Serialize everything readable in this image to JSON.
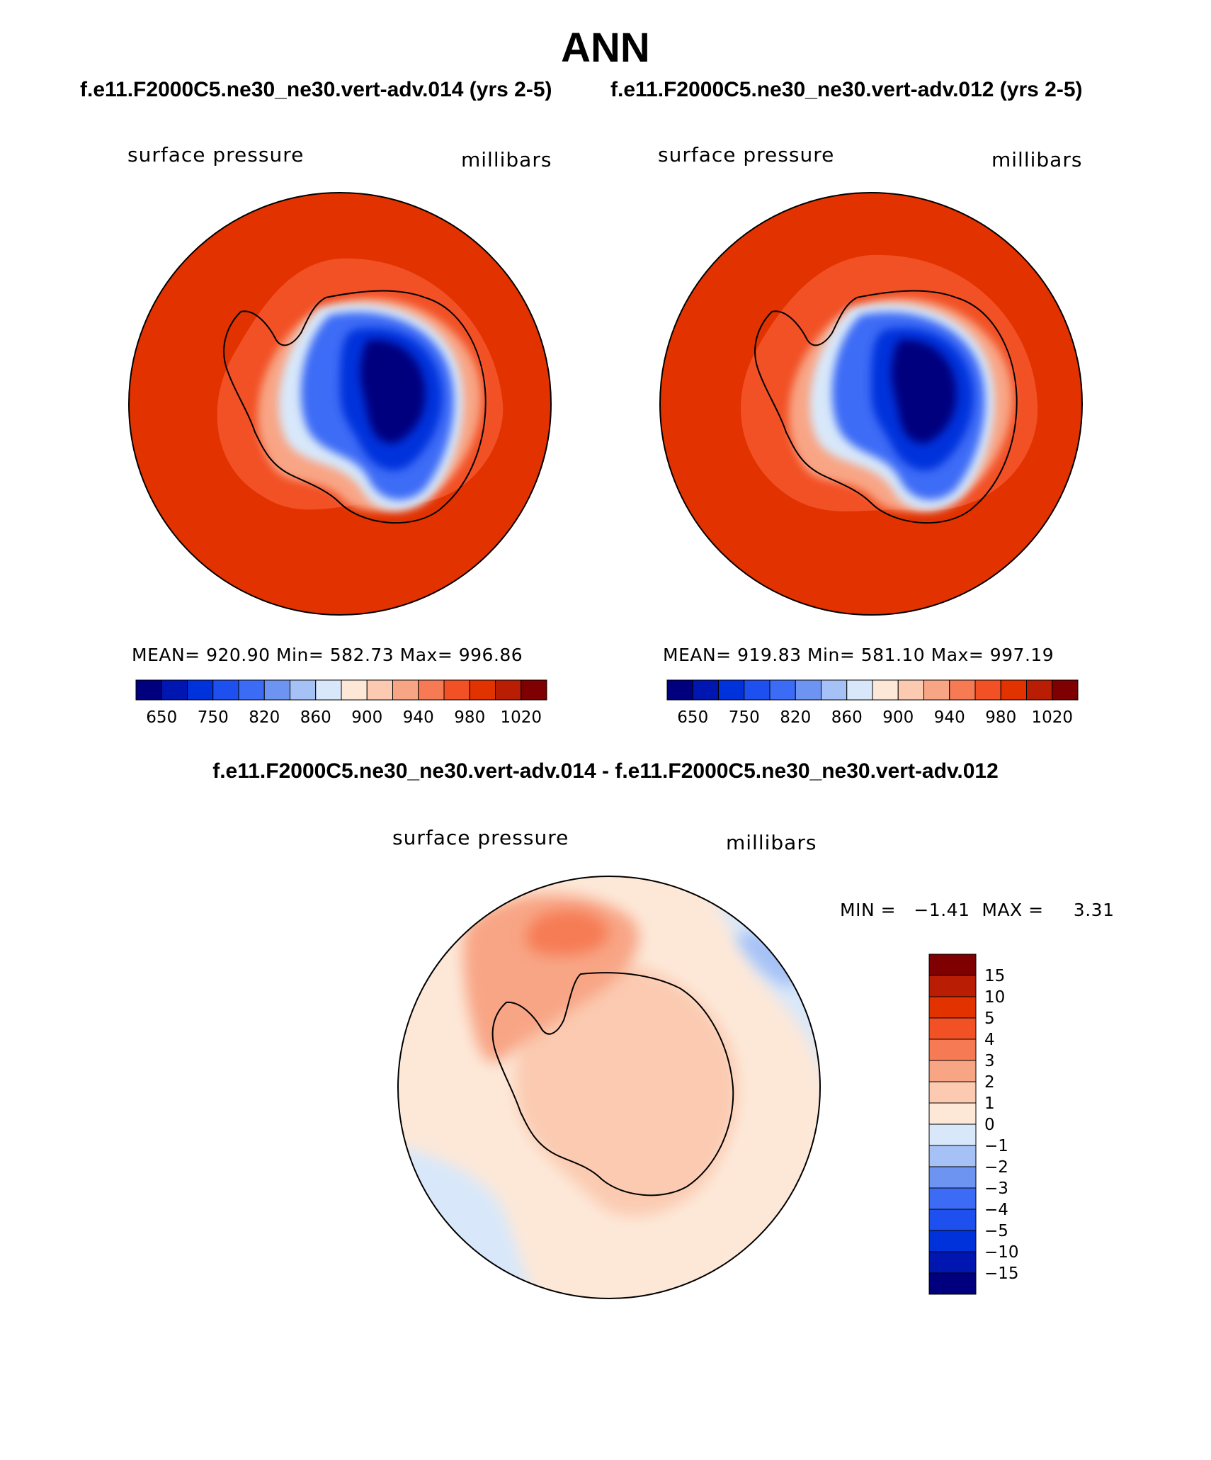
{
  "title": "ANN",
  "panels": [
    {
      "case": "f.e11.F2000C5.ne30_ne30.vert-adv.014 (yrs 2-5)",
      "variable": "surface pressure",
      "units": "millibars",
      "stats": "MEAN= 920.90   Min= 582.73   Max= 996.86"
    },
    {
      "case": "f.e11.F2000C5.ne30_ne30.vert-adv.012 (yrs 2-5)",
      "variable": "surface pressure",
      "units": "millibars",
      "stats": "MEAN= 919.83   Min= 581.10   Max= 997.19"
    }
  ],
  "diff": {
    "title": "f.e11.F2000C5.ne30_ne30.vert-adv.014 - f.e11.F2000C5.ne30_ne30.vert-adv.012",
    "variable": "surface pressure",
    "units": "millibars",
    "minmax": "MIN =   −1.41  MAX =     3.31"
  },
  "chart_data": [
    {
      "type": "heatmap",
      "title": "surface pressure (f.e11.F2000C5.ne30_ne30.vert-adv.014, yrs 2-5)",
      "units": "millibars",
      "mean": 920.9,
      "min": 582.73,
      "max": 996.86,
      "colorbar_ticks": [
        "650",
        "750",
        "820",
        "860",
        "900",
        "940",
        "980",
        "1020"
      ],
      "colorbar_colors": [
        "#00007f",
        "#0016b0",
        "#0032dc",
        "#1e50f0",
        "#3c6cf6",
        "#6e94f2",
        "#a6c1f5",
        "#d8e8fa",
        "#fde8d8",
        "#fbcab1",
        "#f8a585",
        "#f67b55",
        "#f25025",
        "#e13200",
        "#b91e05",
        "#7f0000"
      ]
    },
    {
      "type": "heatmap",
      "title": "surface pressure (f.e11.F2000C5.ne30_ne30.vert-adv.012, yrs 2-5)",
      "units": "millibars",
      "mean": 919.83,
      "min": 581.1,
      "max": 997.19,
      "colorbar_ticks": [
        "650",
        "750",
        "820",
        "860",
        "900",
        "940",
        "980",
        "1020"
      ],
      "colorbar_colors": [
        "#00007f",
        "#0016b0",
        "#0032dc",
        "#1e50f0",
        "#3c6cf6",
        "#6e94f2",
        "#a6c1f5",
        "#d8e8fa",
        "#fde8d8",
        "#fbcab1",
        "#f8a585",
        "#f67b55",
        "#f25025",
        "#e13200",
        "#b91e05",
        "#7f0000"
      ]
    },
    {
      "type": "heatmap",
      "title": "surface pressure difference (014 - 012)",
      "units": "millibars",
      "min": -1.41,
      "max": 3.31,
      "colorbar_ticks": [
        "15",
        "10",
        "5",
        "4",
        "3",
        "2",
        "1",
        "0",
        "−1",
        "−2",
        "−3",
        "−4",
        "−5",
        "−10",
        "−15"
      ],
      "colorbar_colors": [
        "#7f0000",
        "#b91e05",
        "#e13200",
        "#f25025",
        "#f67b55",
        "#f8a585",
        "#fbcab1",
        "#fde8d8",
        "#d8e8fa",
        "#a6c1f5",
        "#6e94f2",
        "#3c6cf6",
        "#1e50f0",
        "#0032dc",
        "#0016b0",
        "#00007f"
      ]
    }
  ]
}
